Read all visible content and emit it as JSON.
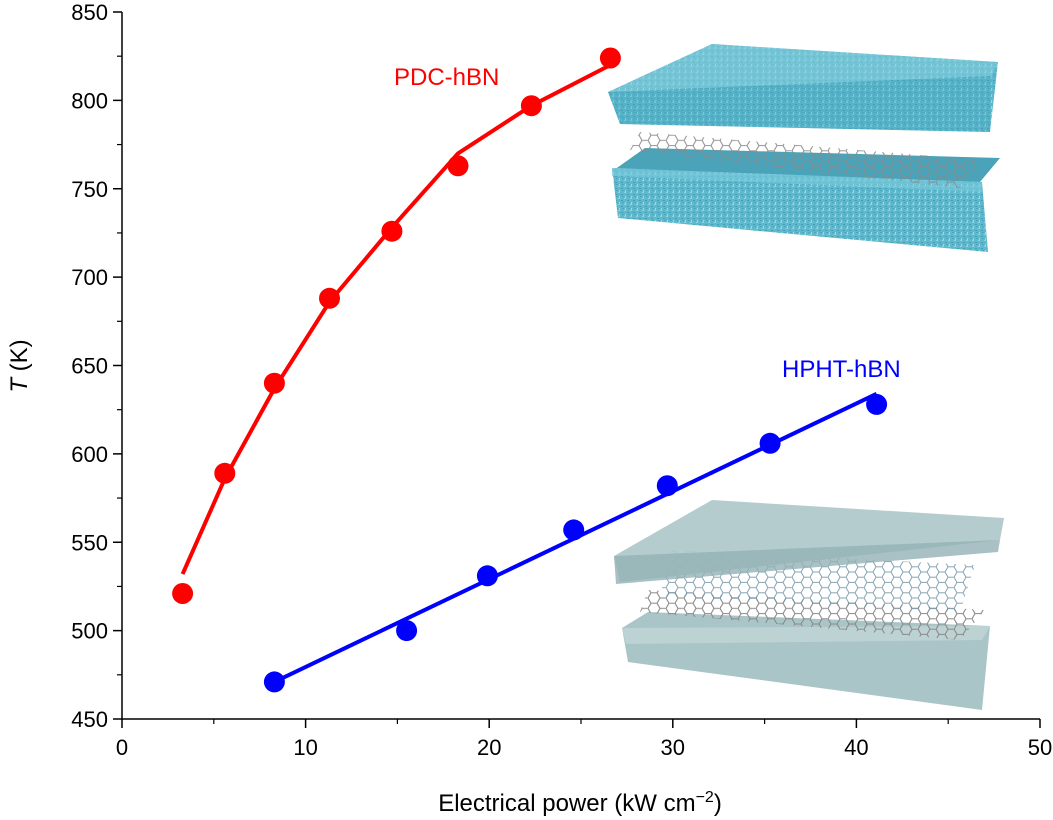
{
  "chart_data": {
    "type": "scatter",
    "xlabel": "Electrical power (kW cm",
    "xlabel_sup": "−2",
    "xlabel_close": ")",
    "ylabel_italic": "T",
    "ylabel_rest": " (K)",
    "xlim": [
      0,
      50
    ],
    "ylim": [
      450,
      850
    ],
    "x_ticks": [
      0,
      10,
      20,
      30,
      40,
      50
    ],
    "y_ticks": [
      450,
      500,
      550,
      600,
      650,
      700,
      750,
      800,
      850
    ],
    "grid": false,
    "series": [
      {
        "name": "PDC-hBN",
        "color": "#ff0000",
        "points": [
          {
            "x": 3.3,
            "y": 521
          },
          {
            "x": 5.6,
            "y": 589
          },
          {
            "x": 8.3,
            "y": 640
          },
          {
            "x": 11.3,
            "y": 688
          },
          {
            "x": 14.7,
            "y": 726
          },
          {
            "x": 18.3,
            "y": 763
          },
          {
            "x": 22.3,
            "y": 797
          },
          {
            "x": 26.6,
            "y": 824
          }
        ],
        "fit": [
          {
            "x": 3.3,
            "y": 532
          },
          {
            "x": 5.6,
            "y": 586
          },
          {
            "x": 8.3,
            "y": 637
          },
          {
            "x": 11.3,
            "y": 686
          },
          {
            "x": 14.7,
            "y": 728
          },
          {
            "x": 18.3,
            "y": 770
          },
          {
            "x": 22.3,
            "y": 797
          },
          {
            "x": 26.6,
            "y": 820
          }
        ]
      },
      {
        "name": "HPHT-hBN",
        "color": "#0000ff",
        "points": [
          {
            "x": 8.3,
            "y": 471
          },
          {
            "x": 15.5,
            "y": 500
          },
          {
            "x": 19.9,
            "y": 531
          },
          {
            "x": 24.6,
            "y": 557
          },
          {
            "x": 29.7,
            "y": 582
          },
          {
            "x": 35.3,
            "y": 606
          },
          {
            "x": 41.1,
            "y": 628
          }
        ],
        "fit": [
          {
            "x": 8.3,
            "y": 471
          },
          {
            "x": 41.1,
            "y": 634
          }
        ]
      }
    ],
    "insets": [
      {
        "name": "pdc-hbn-structure-illustration",
        "color": "#5ab6cc"
      },
      {
        "name": "hpht-hbn-structure-illustration",
        "color": "#a9c3c6"
      }
    ]
  }
}
